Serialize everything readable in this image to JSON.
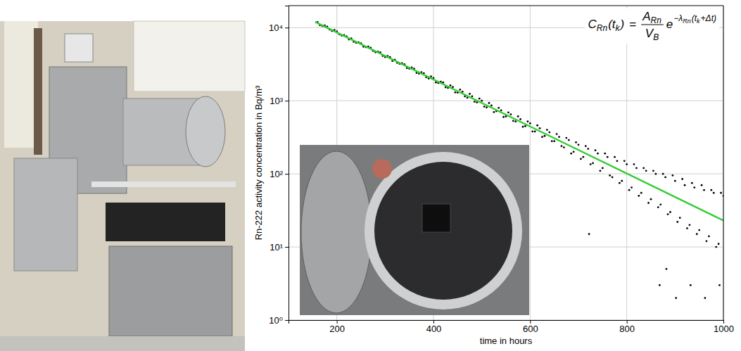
{
  "chart_data": {
    "type": "scatter",
    "xlabel": "time in hours",
    "ylabel": "Rn-222 activity concentration in Bq/m³",
    "log": "y",
    "grid": true,
    "xlim": [
      100,
      1000
    ],
    "xticks": [
      200,
      400,
      600,
      800,
      1000
    ],
    "ylim": [
      1,
      20000
    ],
    "yticks": [
      {
        "value": 1,
        "label": "10⁰"
      },
      {
        "value": 10,
        "label": "10¹"
      },
      {
        "value": 100,
        "label": "10²"
      },
      {
        "value": 1000,
        "label": "10³"
      },
      {
        "value": 10000,
        "label": "10⁴"
      }
    ],
    "formula": {
      "left": [
        "C",
        "Rn",
        "(t",
        "k",
        ")"
      ],
      "equals": "=",
      "numerator": [
        "A",
        "Rn"
      ],
      "denominator": [
        "V",
        "B"
      ],
      "base": "e",
      "exponent": [
        "−λ",
        "Rn",
        "(t",
        "k",
        "+Δt)"
      ]
    },
    "series": [
      {
        "type": "scatter",
        "color": "#000000",
        "marker": "circle",
        "x": [
          160,
          165,
          170,
          175,
          180,
          185,
          190,
          195,
          200,
          205,
          210,
          215,
          220,
          225,
          230,
          235,
          240,
          245,
          250,
          255,
          260,
          265,
          270,
          275,
          280,
          285,
          290,
          295,
          300,
          305,
          310,
          315,
          320,
          325,
          330,
          335,
          340,
          345,
          350,
          355,
          360,
          365,
          370,
          375,
          380,
          385,
          390,
          395,
          400,
          405,
          410,
          415,
          420,
          425,
          430,
          435,
          440,
          445,
          450,
          455,
          460,
          465,
          470,
          475,
          480,
          485,
          490,
          495,
          500,
          505,
          510,
          515,
          520,
          525,
          530,
          535,
          540,
          545,
          550,
          555,
          560,
          565,
          570,
          575,
          580,
          585,
          590,
          595,
          600,
          605,
          610,
          615,
          620,
          625,
          630,
          635,
          640,
          645,
          650,
          655,
          660,
          665,
          670,
          675,
          680,
          685,
          690,
          695,
          700,
          705,
          710,
          715,
          720,
          725,
          730,
          735,
          740,
          745,
          750,
          755,
          760,
          765,
          770,
          775,
          780,
          785,
          790,
          795,
          800,
          805,
          810,
          815,
          820,
          825,
          830,
          835,
          840,
          845,
          850,
          855,
          860,
          865,
          870,
          875,
          880,
          885,
          890,
          895,
          900,
          905,
          910,
          915,
          920,
          925,
          930,
          935,
          940,
          945,
          950,
          955,
          960,
          965,
          970,
          975,
          980,
          985,
          990,
          995,
          1000,
          722,
          868,
          882,
          902,
          932,
          962,
          992
        ],
        "values": [
          11900,
          10800,
          10500,
          10700,
          10300,
          9400,
          9000,
          9300,
          8900,
          8100,
          7800,
          7900,
          7600,
          6900,
          7100,
          6400,
          6200,
          6300,
          6100,
          5500,
          5400,
          5500,
          5300,
          4800,
          4600,
          4700,
          4600,
          4100,
          3950,
          4100,
          3950,
          3500,
          3650,
          3300,
          3200,
          3250,
          3150,
          2800,
          2750,
          2850,
          2750,
          2400,
          2350,
          2450,
          2380,
          2100,
          2020,
          2150,
          2050,
          1780,
          1750,
          1820,
          1780,
          1530,
          1500,
          1620,
          1540,
          1300,
          1290,
          1420,
          1330,
          1150,
          1100,
          1240,
          1150,
          970,
          950,
          1070,
          1000,
          830,
          810,
          930,
          860,
          700,
          720,
          800,
          740,
          600,
          610,
          690,
          650,
          530,
          520,
          610,
          560,
          440,
          450,
          520,
          490,
          380,
          380,
          460,
          420,
          320,
          330,
          400,
          370,
          280,
          280,
          350,
          320,
          240,
          230,
          310,
          290,
          190,
          200,
          270,
          250,
          160,
          170,
          240,
          220,
          135,
          140,
          210,
          190,
          110,
          120,
          190,
          170,
          95,
          90,
          170,
          150,
          75,
          80,
          150,
          135,
          60,
          65,
          135,
          120,
          50,
          55,
          120,
          110,
          40,
          45,
          110,
          100,
          35,
          38,
          100,
          90,
          28,
          30,
          95,
          80,
          22,
          25,
          85,
          70,
          18,
          20,
          75,
          65,
          15,
          17,
          70,
          60,
          12,
          14,
          60,
          55,
          10,
          11,
          55,
          50,
          15,
          3,
          5,
          2,
          3,
          2,
          3
        ]
      },
      {
        "type": "line",
        "color": "#33cc33",
        "line_style": "solid",
        "x": [
          155,
          1000
        ],
        "values": [
          12000,
          23
        ]
      }
    ]
  }
}
